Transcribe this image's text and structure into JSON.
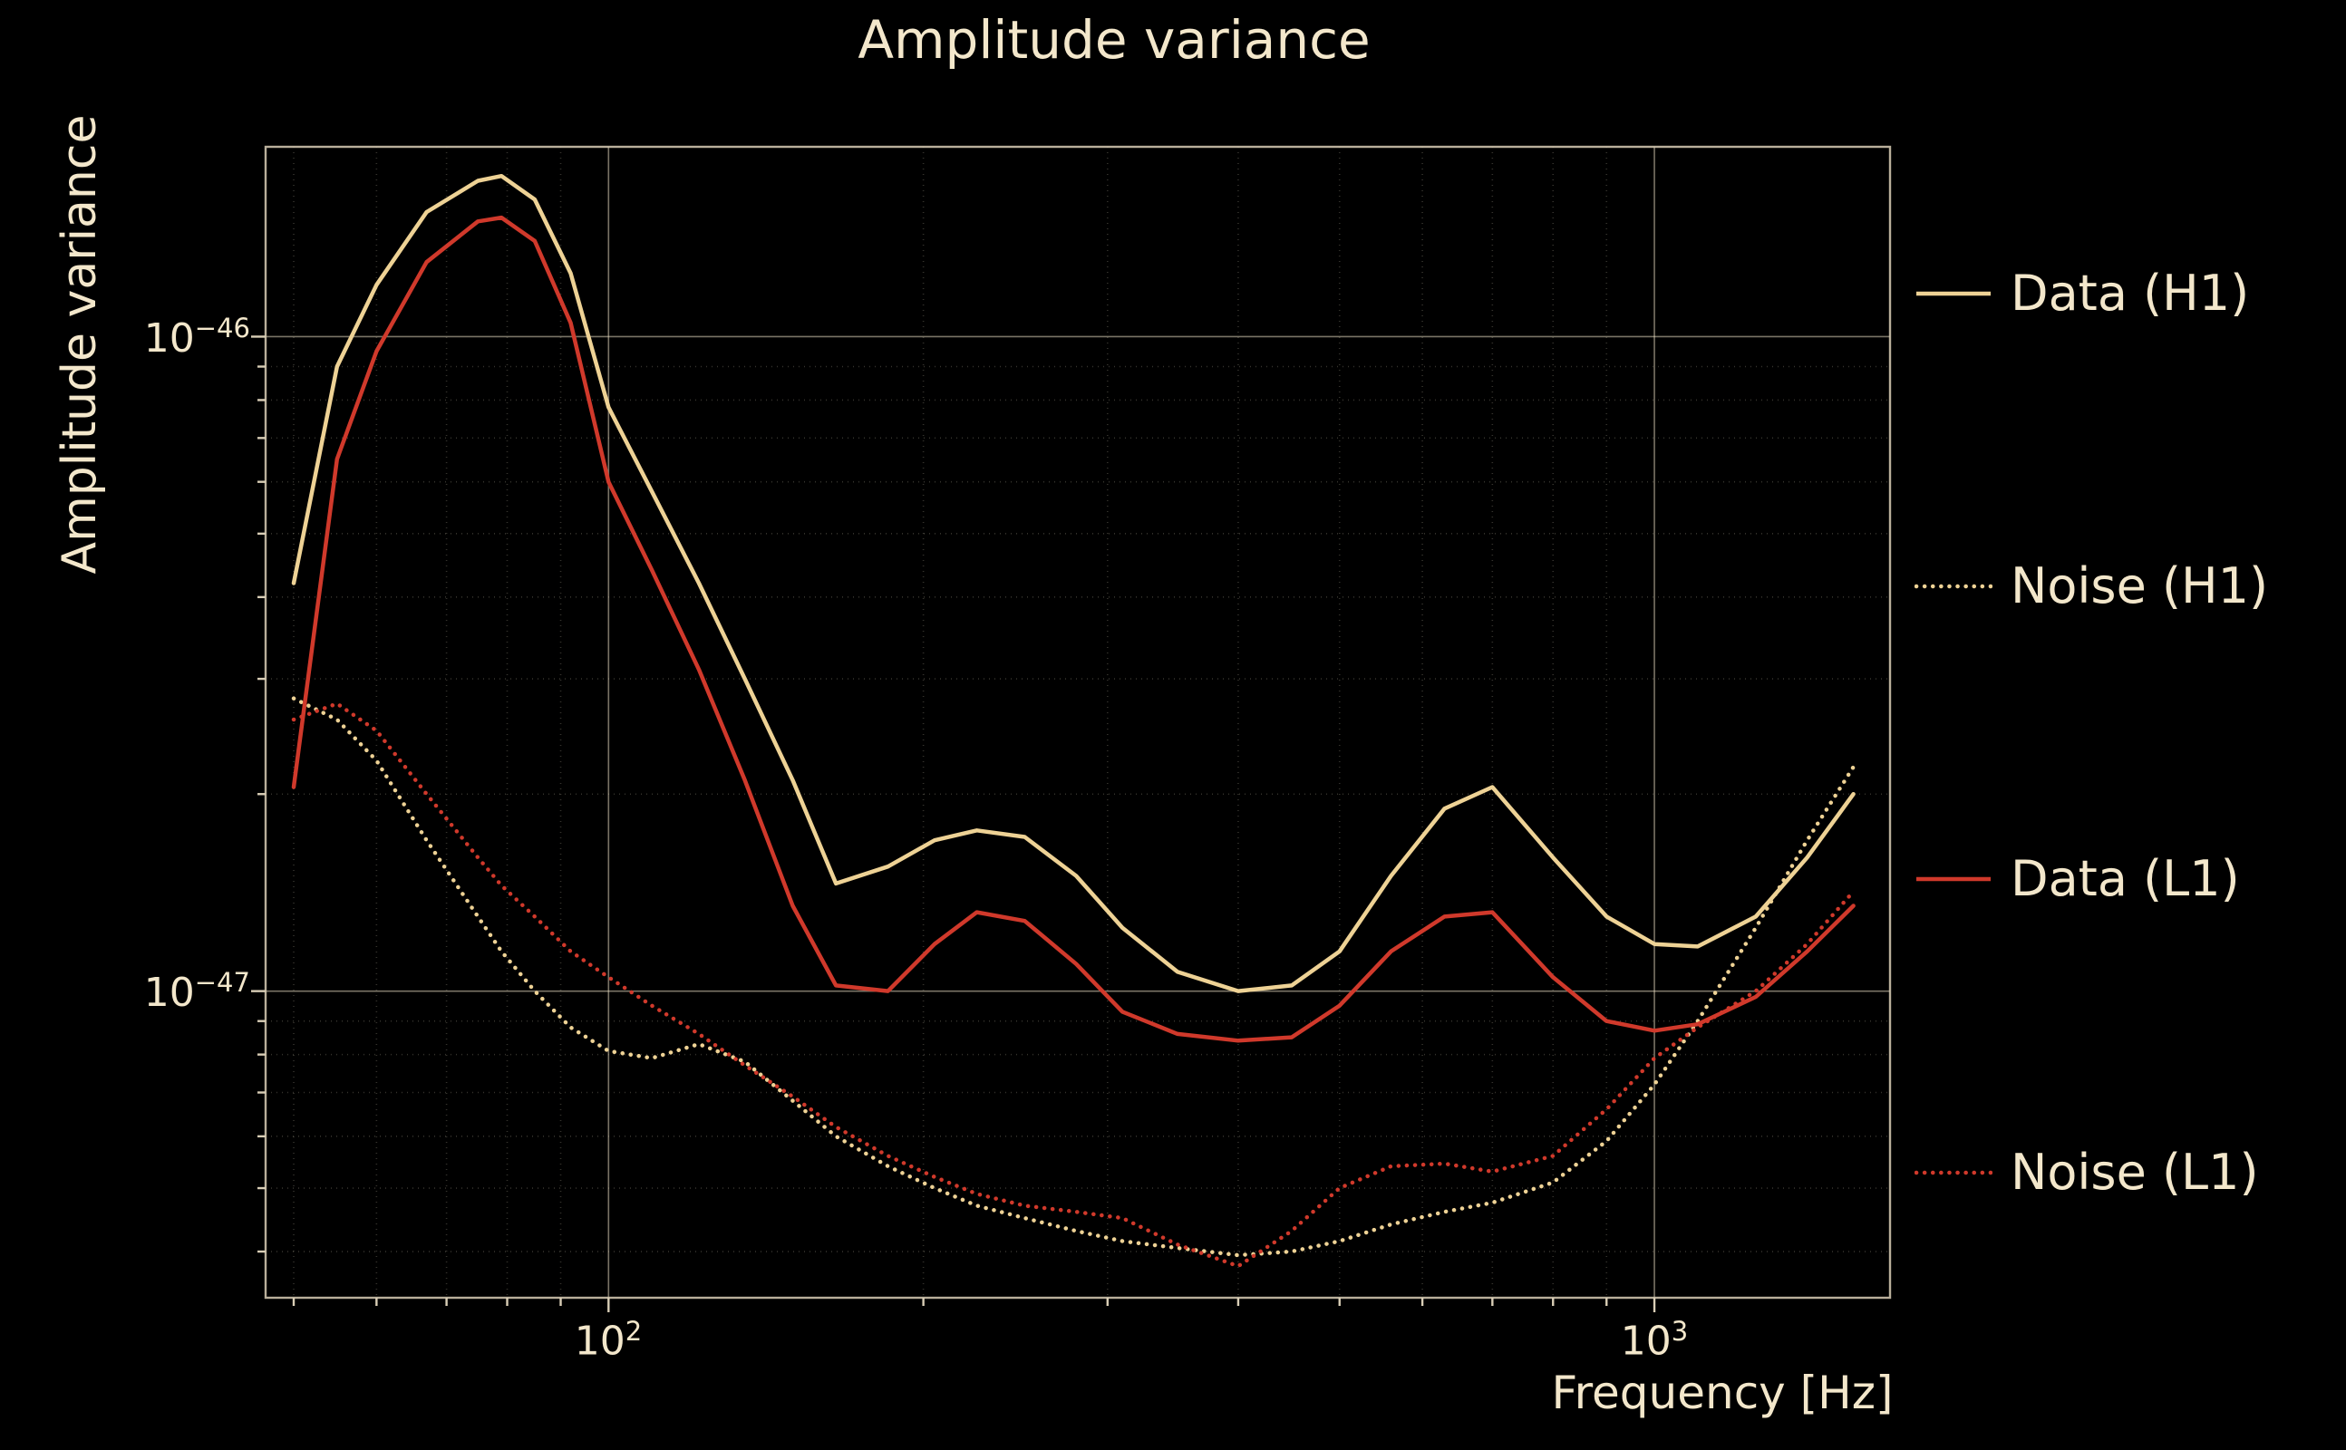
{
  "title": "Amplitude variance",
  "axes": {
    "xlabel": "Frequency [Hz]",
    "ylabel": "Amplitude variance",
    "xticks": [
      {
        "base": "10",
        "exp": "2"
      },
      {
        "base": "10",
        "exp": "3"
      }
    ],
    "yticks": [
      {
        "base": "10",
        "exp": "−46"
      },
      {
        "base": "10",
        "exp": "−47"
      }
    ]
  },
  "legend": {
    "entries": [
      {
        "label": "Data (H1)"
      },
      {
        "label": "Noise (H1)"
      },
      {
        "label": "Data (L1)"
      },
      {
        "label": "Noise (L1)"
      }
    ]
  },
  "colors": {
    "background": "#000000",
    "text": "#f3e7cb",
    "wheat": "#eed295",
    "red": "#d0392b"
  },
  "chart_data": {
    "type": "line",
    "title": "Amplitude variance",
    "xlabel": "Frequency [Hz]",
    "ylabel": "Amplitude variance",
    "xscale": "log",
    "yscale": "log",
    "xlim": [
      47,
      1680
    ],
    "ylim": [
      3.4e-48,
      1.95e-46
    ],
    "xtick_values": [
      100,
      1000
    ],
    "ytick_values": [
      1e-46,
      1e-47
    ],
    "grid": true,
    "legend_position": "right-outside",
    "x": [
      50,
      55,
      60,
      67,
      75,
      79,
      85,
      92,
      100,
      110,
      122,
      135,
      150,
      165,
      185,
      205,
      225,
      250,
      280,
      310,
      350,
      400,
      450,
      500,
      560,
      630,
      700,
      800,
      900,
      1000,
      1100,
      1250,
      1400,
      1550
    ],
    "series": [
      {
        "name": "Data (H1)",
        "color": "#eed295",
        "style": "solid",
        "y": [
          4.2e-47,
          9e-47,
          1.2e-46,
          1.55e-46,
          1.73e-46,
          1.76e-46,
          1.62e-46,
          1.25e-46,
          7.8e-47,
          5.8e-47,
          4.2e-47,
          3e-47,
          2.1e-47,
          1.46e-47,
          1.55e-47,
          1.7e-47,
          1.76e-47,
          1.72e-47,
          1.5e-47,
          1.25e-47,
          1.07e-47,
          1e-47,
          1.02e-47,
          1.15e-47,
          1.5e-47,
          1.9e-47,
          2.05e-47,
          1.6e-47,
          1.3e-47,
          1.18e-47,
          1.17e-47,
          1.3e-47,
          1.6e-47,
          2e-47
        ]
      },
      {
        "name": "Noise (H1)",
        "color": "#eed295",
        "style": "dotted",
        "y": [
          2.8e-47,
          2.6e-47,
          2.25e-47,
          1.7e-47,
          1.3e-47,
          1.15e-47,
          1e-47,
          8.8e-48,
          8.1e-48,
          7.9e-48,
          8.3e-48,
          7.8e-48,
          6.8e-48,
          6e-48,
          5.4e-48,
          5e-48,
          4.7e-48,
          4.5e-48,
          4.3e-48,
          4.15e-48,
          4.05e-48,
          3.95e-48,
          4e-48,
          4.15e-48,
          4.4e-48,
          4.6e-48,
          4.75e-48,
          5.1e-48,
          5.9e-48,
          7.2e-48,
          9e-48,
          1.25e-47,
          1.7e-47,
          2.2e-47
        ]
      },
      {
        "name": "Data (L1)",
        "color": "#d0392b",
        "style": "solid",
        "y": [
          2.05e-47,
          6.5e-47,
          9.5e-47,
          1.3e-46,
          1.5e-46,
          1.52e-46,
          1.4e-46,
          1.05e-46,
          6e-47,
          4.4e-47,
          3.1e-47,
          2.1e-47,
          1.35e-47,
          1.02e-47,
          1e-47,
          1.18e-47,
          1.32e-47,
          1.28e-47,
          1.1e-47,
          9.3e-48,
          8.6e-48,
          8.4e-48,
          8.5e-48,
          9.5e-48,
          1.15e-47,
          1.3e-47,
          1.32e-47,
          1.05e-47,
          9e-48,
          8.7e-48,
          8.9e-48,
          9.8e-48,
          1.15e-47,
          1.35e-47
        ]
      },
      {
        "name": "Noise (L1)",
        "color": "#d0392b",
        "style": "dotted",
        "y": [
          2.6e-47,
          2.75e-47,
          2.5e-47,
          2e-47,
          1.6e-47,
          1.45e-47,
          1.3e-47,
          1.15e-47,
          1.05e-47,
          9.5e-48,
          8.6e-48,
          7.7e-48,
          6.9e-48,
          6.2e-48,
          5.6e-48,
          5.2e-48,
          4.9e-48,
          4.7e-48,
          4.6e-48,
          4.5e-48,
          4.1e-48,
          3.8e-48,
          4.3e-48,
          5e-48,
          5.4e-48,
          5.45e-48,
          5.3e-48,
          5.6e-48,
          6.6e-48,
          7.9e-48,
          8.8e-48,
          1e-47,
          1.18e-47,
          1.42e-47
        ]
      }
    ]
  }
}
